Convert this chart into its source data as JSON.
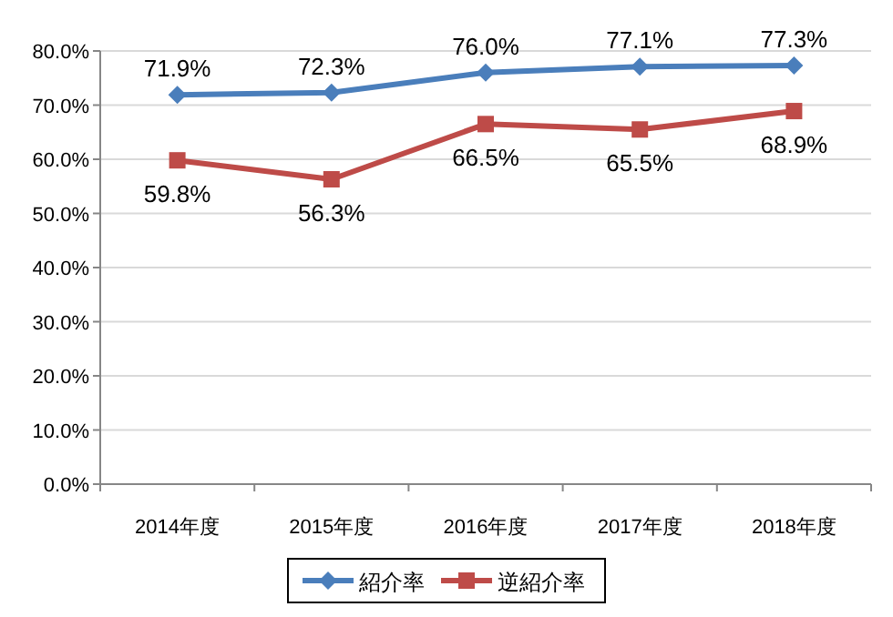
{
  "chart_data": {
    "type": "line",
    "categories": [
      "2014年度",
      "2015年度",
      "2016年度",
      "2017年度",
      "2018年度"
    ],
    "series": [
      {
        "name": "紹介率",
        "color": "#4a7ebb",
        "marker": "diamond",
        "values": [
          71.9,
          72.3,
          76.0,
          77.1,
          77.3
        ],
        "value_labels": [
          "71.9%",
          "72.3%",
          "76.0%",
          "77.1%",
          "77.3%"
        ]
      },
      {
        "name": "逆紹介率",
        "color": "#be4b48",
        "marker": "square",
        "values": [
          59.8,
          56.3,
          66.5,
          65.5,
          68.9
        ],
        "value_labels": [
          "59.8%",
          "56.3%",
          "66.5%",
          "65.5%",
          "68.9%"
        ]
      }
    ],
    "ylim": [
      0,
      80
    ],
    "yticks": [
      {
        "value": 0,
        "label": "0.0%"
      },
      {
        "value": 10,
        "label": "10.0%"
      },
      {
        "value": 20,
        "label": "20.0%"
      },
      {
        "value": 30,
        "label": "30.0%"
      },
      {
        "value": 40,
        "label": "40.0%"
      },
      {
        "value": 50,
        "label": "50.0%"
      },
      {
        "value": 60,
        "label": "60.0%"
      },
      {
        "value": 70,
        "label": "70.0%"
      },
      {
        "value": 80,
        "label": "80.0%"
      }
    ],
    "grid": "y",
    "legend": "bottom"
  }
}
